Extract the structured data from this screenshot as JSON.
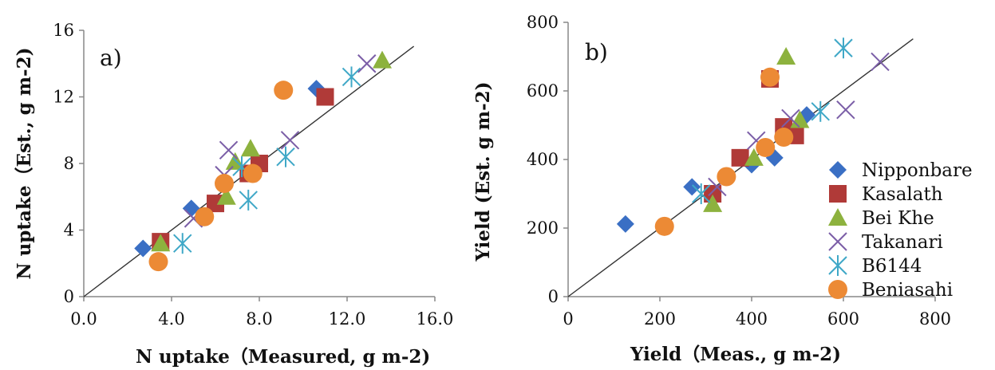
{
  "series_styles": [
    {
      "name": "Nipponbare",
      "marker": "diamond",
      "color": "#3A6FC4"
    },
    {
      "name": "Kasalath",
      "marker": "square",
      "color": "#B03A38"
    },
    {
      "name": "Bei Khe",
      "marker": "triangle",
      "color": "#8DB23E"
    },
    {
      "name": "Takanari",
      "marker": "x",
      "color": "#7B5EA7"
    },
    {
      "name": "B6144",
      "marker": "asterisk",
      "color": "#3FA8C7"
    },
    {
      "name": "Beniasahi",
      "marker": "circle",
      "color": "#EC8A35"
    }
  ],
  "chart_data": [
    {
      "type": "scatter",
      "panel_label": "a)",
      "xlabel": "N uptake（Measured, g m-2)",
      "ylabel": "N uptake（Est., g m-2)",
      "xlim": [
        0,
        16
      ],
      "ylim": [
        0,
        16
      ],
      "x_ticks": [
        "0.0",
        "4.0",
        "8.0",
        "12.0",
        "16.0"
      ],
      "y_ticks": [
        "0",
        "4",
        "8",
        "12",
        "16"
      ],
      "reference_line": "1:1",
      "series": [
        {
          "name": "Nipponbare",
          "points": [
            [
              2.7,
              2.9
            ],
            [
              4.9,
              5.3
            ],
            [
              10.6,
              12.5
            ]
          ]
        },
        {
          "name": "Kasalath",
          "points": [
            [
              3.5,
              3.3
            ],
            [
              6.0,
              5.6
            ],
            [
              7.5,
              7.4
            ],
            [
              8.0,
              8.0
            ],
            [
              11.0,
              12.0
            ]
          ]
        },
        {
          "name": "Bei Khe",
          "points": [
            [
              3.5,
              3.2
            ],
            [
              6.5,
              6.0
            ],
            [
              6.9,
              8.1
            ],
            [
              7.6,
              8.9
            ],
            [
              13.6,
              14.2
            ]
          ]
        },
        {
          "name": "Takanari",
          "points": [
            [
              5.0,
              4.7
            ],
            [
              6.4,
              7.3
            ],
            [
              6.6,
              8.8
            ],
            [
              9.4,
              9.4
            ],
            [
              12.9,
              14.0
            ]
          ]
        },
        {
          "name": "B6144",
          "points": [
            [
              4.5,
              3.2
            ],
            [
              7.5,
              5.8
            ],
            [
              7.2,
              7.8
            ],
            [
              9.2,
              8.4
            ],
            [
              12.2,
              13.2
            ]
          ]
        },
        {
          "name": "Beniasahi",
          "points": [
            [
              3.4,
              2.1
            ],
            [
              5.5,
              4.8
            ],
            [
              6.4,
              6.8
            ],
            [
              7.7,
              7.4
            ],
            [
              9.1,
              12.4
            ]
          ]
        }
      ]
    },
    {
      "type": "scatter",
      "panel_label": "b)",
      "xlabel": "Yield（Meas., g m-2)",
      "ylabel": "Yield (Est. g m-2)",
      "xlim": [
        0,
        800
      ],
      "ylim": [
        0,
        800
      ],
      "x_ticks": [
        "0",
        "200",
        "400",
        "600",
        "800"
      ],
      "y_ticks": [
        "0",
        "200",
        "400",
        "600",
        "800"
      ],
      "reference_line": "1:1",
      "legend_position": "right",
      "series": [
        {
          "name": "Nipponbare",
          "points": [
            [
              125,
              212
            ],
            [
              270,
              320
            ],
            [
              400,
              385
            ],
            [
              450,
              405
            ],
            [
              520,
              530
            ]
          ]
        },
        {
          "name": "Kasalath",
          "points": [
            [
              315,
              300
            ],
            [
              375,
              405
            ],
            [
              440,
              635
            ],
            [
              470,
              495
            ],
            [
              495,
              470
            ]
          ]
        },
        {
          "name": "Bei Khe",
          "points": [
            [
              315,
              270
            ],
            [
              405,
              405
            ],
            [
              475,
              700
            ],
            [
              505,
              515
            ]
          ]
        },
        {
          "name": "Takanari",
          "points": [
            [
              325,
              320
            ],
            [
              410,
              455
            ],
            [
              485,
              520
            ],
            [
              605,
              545
            ],
            [
              680,
              685
            ]
          ]
        },
        {
          "name": "B6144",
          "points": [
            [
              290,
              300
            ],
            [
              550,
              540
            ],
            [
              600,
              725
            ]
          ]
        },
        {
          "name": "Beniasahi",
          "points": [
            [
              210,
              205
            ],
            [
              345,
              350
            ],
            [
              430,
              435
            ],
            [
              470,
              465
            ],
            [
              440,
              640
            ]
          ]
        }
      ]
    }
  ]
}
